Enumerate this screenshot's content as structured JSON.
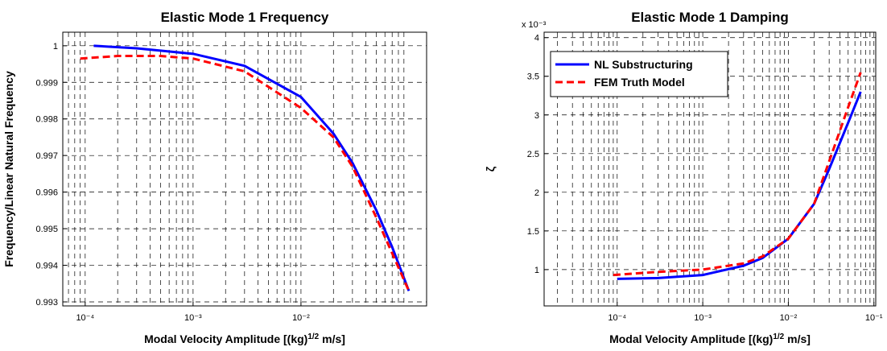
{
  "chart_data": [
    {
      "type": "line",
      "title": "Elastic Mode 1 Frequency",
      "xlabel": [
        "Modal Velocity Amplitude [(kg)",
        "1/2",
        " m/s]"
      ],
      "ylabel": "Frequency/Linear Natural Frequency",
      "xscale": "log",
      "grid": true,
      "minor_grid": true,
      "xlim": [
        6.2e-05,
        0.146
      ],
      "ylim": [
        0.99289,
        1.00037
      ],
      "xticks": [
        {
          "value": 0.0001,
          "label": "10⁻⁴"
        },
        {
          "value": 0.001,
          "label": "10⁻³"
        },
        {
          "value": 0.01,
          "label": "10⁻²"
        }
      ],
      "yticks": [
        0.993,
        0.994,
        0.995,
        0.996,
        0.997,
        0.998,
        0.999,
        1
      ],
      "series": [
        {
          "color": "#0000ff",
          "linestyle": "solid",
          "x": [
            0.00012,
            0.0003,
            0.001,
            0.003,
            0.01,
            0.02,
            0.03,
            0.05,
            0.07,
            0.1
          ],
          "values": [
            1.0,
            0.99993,
            0.99978,
            0.99945,
            0.9986,
            0.9976,
            0.9968,
            0.9955,
            0.9945,
            0.9933
          ]
        },
        {
          "color": "#ff0000",
          "linestyle": "dashed",
          "x": [
            9e-05,
            0.0002,
            0.0005,
            0.001,
            0.003,
            0.01,
            0.02,
            0.03,
            0.05,
            0.1
          ],
          "values": [
            0.99965,
            0.99972,
            0.99972,
            0.99965,
            0.9993,
            0.9983,
            0.9975,
            0.9967,
            0.9953,
            0.9933
          ]
        }
      ]
    },
    {
      "type": "line",
      "title": "Elastic Mode 1 Damping",
      "xlabel": [
        "Modal Velocity Amplitude [(kg)",
        "1/2",
        " m/s]"
      ],
      "ylabel": "ζ",
      "y_multiplier": "x 10⁻³",
      "xscale": "log",
      "grid": true,
      "minor_grid": true,
      "legend": "upper left",
      "xlim": [
        1.4e-05,
        0.105
      ],
      "ylim": [
        0.53,
        4.07
      ],
      "xticks": [
        {
          "value": 0.0001,
          "label": "10⁻⁴"
        },
        {
          "value": 0.001,
          "label": "10⁻³"
        },
        {
          "value": 0.01,
          "label": "10⁻²"
        },
        {
          "value": 0.1,
          "label": "10⁻¹"
        }
      ],
      "yticks": [
        1,
        1.5,
        2,
        2.5,
        3,
        3.5,
        4
      ],
      "series": [
        {
          "name": "NL Substructuring",
          "color": "#0000ff",
          "linestyle": "solid",
          "x": [
            0.0001,
            0.0003,
            0.001,
            0.003,
            0.005,
            0.01,
            0.02,
            0.03,
            0.05,
            0.07
          ],
          "values": [
            0.88,
            0.89,
            0.93,
            1.05,
            1.15,
            1.4,
            1.85,
            2.3,
            2.9,
            3.3
          ]
        },
        {
          "name": "FEM Truth Model",
          "color": "#ff0000",
          "linestyle": "dashed",
          "x": [
            9e-05,
            0.0003,
            0.001,
            0.003,
            0.005,
            0.01,
            0.02,
            0.03,
            0.05,
            0.07
          ],
          "values": [
            0.93,
            0.97,
            1.0,
            1.08,
            1.17,
            1.4,
            1.85,
            2.4,
            3.1,
            3.55
          ]
        }
      ]
    }
  ]
}
